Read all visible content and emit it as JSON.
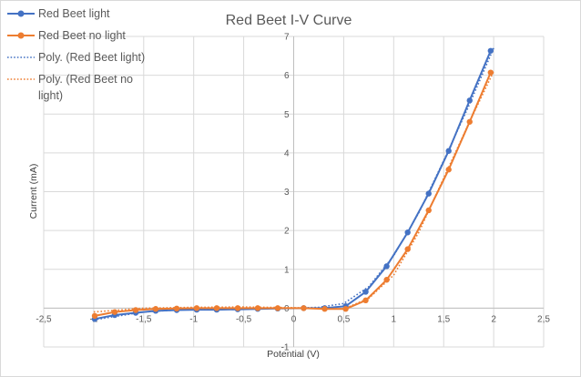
{
  "chart_data": {
    "type": "scatter",
    "title": "Red Beet I-V Curve",
    "xlabel": "Potential  (V)",
    "ylabel": "Current (mA)",
    "xlim": [
      -2.5,
      2.5
    ],
    "ylim": [
      -1,
      7
    ],
    "x_ticks": [
      "-2,5",
      "-2",
      "-1,5",
      "-1",
      "-0,5",
      "0",
      "0,5",
      "1",
      "1,5",
      "2",
      "2,5"
    ],
    "y_ticks": [
      "-1",
      "0",
      "1",
      "2",
      "3",
      "4",
      "5",
      "6",
      "7"
    ],
    "grid": true,
    "legend_position": "left",
    "series": [
      {
        "name": "Red Beet light",
        "color": "#4472c4",
        "style": "solid-markers",
        "x": [
          -1.99,
          -1.79,
          -1.58,
          -1.38,
          -1.17,
          -0.97,
          -0.77,
          -0.56,
          -0.36,
          -0.16,
          0.1,
          0.31,
          0.52,
          0.72,
          0.93,
          1.14,
          1.35,
          1.55,
          1.76,
          1.97
        ],
        "y": [
          -0.28,
          -0.18,
          -0.12,
          -0.07,
          -0.05,
          -0.04,
          -0.04,
          -0.03,
          -0.02,
          -0.01,
          0.0,
          0.0,
          0.05,
          0.42,
          1.08,
          1.95,
          2.95,
          4.05,
          5.35,
          6.63
        ]
      },
      {
        "name": "Red Beet no light",
        "color": "#ed7d31",
        "style": "solid-markers",
        "x": [
          -1.99,
          -1.79,
          -1.58,
          -1.38,
          -1.17,
          -0.97,
          -0.77,
          -0.56,
          -0.36,
          -0.16,
          0.1,
          0.31,
          0.52,
          0.72,
          0.93,
          1.14,
          1.35,
          1.55,
          1.76,
          1.97
        ],
        "y": [
          -0.2,
          -0.1,
          -0.05,
          -0.02,
          -0.01,
          0.0,
          0.0,
          0.0,
          0.0,
          0.0,
          0.0,
          -0.02,
          -0.02,
          0.2,
          0.73,
          1.52,
          2.52,
          3.57,
          4.8,
          6.07
        ]
      },
      {
        "name": "Poly. (Red Beet light)",
        "color": "#4472c4",
        "style": "dotted-trend",
        "x": [
          -2.0,
          -1.5,
          -1.0,
          -0.5,
          0.0,
          0.25,
          0.5,
          0.75,
          1.0,
          1.25,
          1.5,
          1.75,
          2.0
        ],
        "y": [
          -0.3,
          -0.1,
          -0.02,
          -0.01,
          0.0,
          0.02,
          0.12,
          0.55,
          1.35,
          2.45,
          3.8,
          5.2,
          6.7
        ]
      },
      {
        "name": "Poly. (Red Beet no light)",
        "color": "#ed7d31",
        "style": "dotted-trend",
        "x": [
          -2.0,
          -1.5,
          -1.0,
          -0.5,
          0.0,
          0.25,
          0.5,
          0.75,
          1.0,
          1.25,
          1.5,
          1.75,
          2.0
        ],
        "y": [
          -0.1,
          0.0,
          0.02,
          0.03,
          0.01,
          -0.01,
          -0.02,
          0.25,
          0.85,
          1.95,
          3.35,
          4.75,
          6.1
        ]
      }
    ]
  },
  "legend": {
    "items": [
      {
        "label": "Red Beet light",
        "color": "#4472c4",
        "style": "solid-markers"
      },
      {
        "label": "Red Beet no light",
        "color": "#ed7d31",
        "style": "solid-markers"
      },
      {
        "label": "Poly. (Red Beet light)",
        "color": "#4472c4",
        "style": "dotted"
      },
      {
        "label": "Poly. (Red Beet no light)",
        "color": "#ed7d31",
        "style": "dotted"
      }
    ]
  }
}
